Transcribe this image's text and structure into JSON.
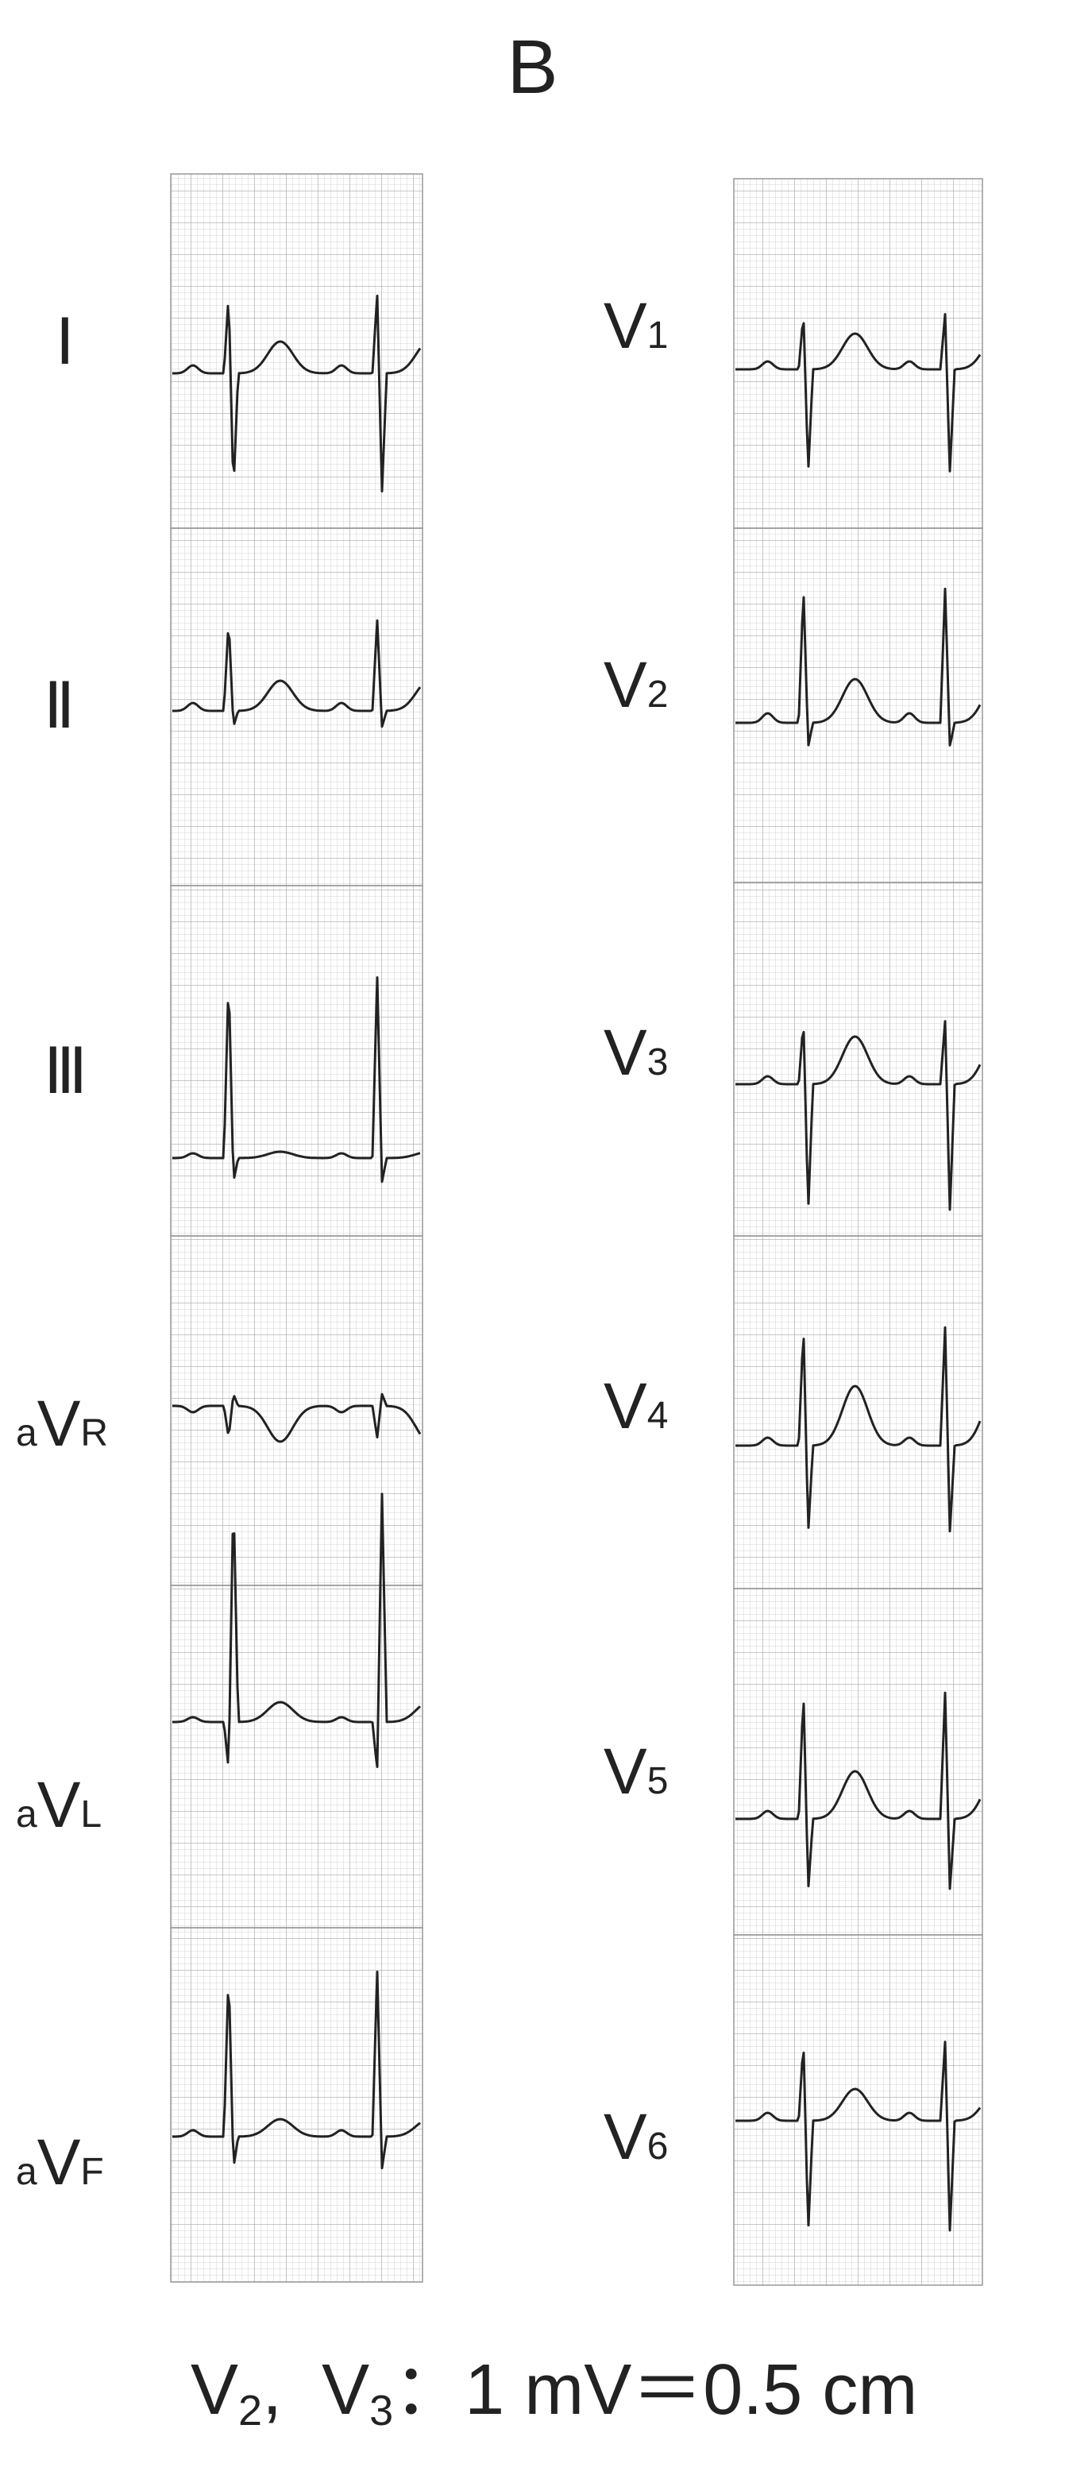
{
  "title": "B",
  "limb_leads": [
    [
      "Ⅰ"
    ],
    [
      "Ⅱ"
    ],
    [
      "Ⅲ"
    ],
    [
      "a",
      "V",
      "R"
    ],
    [
      "a",
      "V",
      "L"
    ],
    [
      "a",
      "V",
      "F"
    ]
  ],
  "chest_leads": [
    [
      "V",
      "1"
    ],
    [
      "V",
      "2"
    ],
    [
      "V",
      "3"
    ],
    [
      "V",
      "4"
    ],
    [
      "V",
      "5"
    ],
    [
      "V",
      "6"
    ]
  ],
  "footer": [
    "V",
    "2",
    ",",
    "V",
    "3",
    "：1 mV＝0.5 cm"
  ]
}
